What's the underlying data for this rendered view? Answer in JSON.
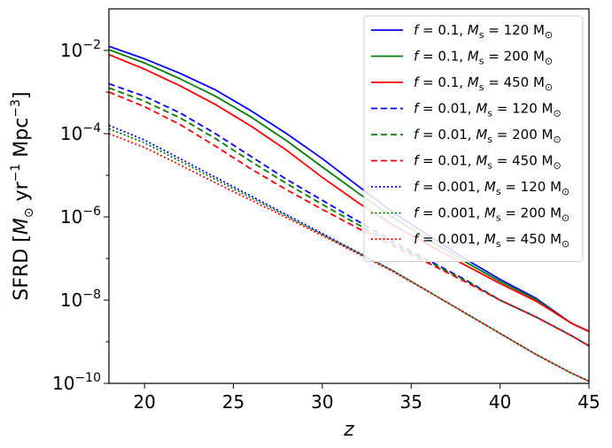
{
  "chart_data": {
    "type": "line",
    "title": "",
    "xlabel": "z",
    "ylabel": "SFRD [M☉ yr⁻¹ Mpc⁻³]",
    "ylabel_parts": {
      "prefix": "SFRD [",
      "msun": "M",
      "sun_sub": "⊙",
      "yr": " yr",
      "yr_exp": "−1",
      "mpc": " Mpc",
      "mpc_exp": "−3",
      "suffix": "]"
    },
    "xlim": [
      18,
      45
    ],
    "ylim_log10": [
      -10,
      -1
    ],
    "yscale": "log",
    "x_ticks": [
      {
        "value": 20,
        "label": "20"
      },
      {
        "value": 25,
        "label": "25"
      },
      {
        "value": 30,
        "label": "30"
      },
      {
        "value": 35,
        "label": "35"
      },
      {
        "value": 40,
        "label": "40"
      },
      {
        "value": 45,
        "label": "45"
      }
    ],
    "y_ticks": [
      {
        "exp": -10,
        "base": "10",
        "sup": "−10"
      },
      {
        "exp": -8,
        "base": "10",
        "sup": "−8"
      },
      {
        "exp": -6,
        "base": "10",
        "sup": "−6"
      },
      {
        "exp": -4,
        "base": "10",
        "sup": "−4"
      },
      {
        "exp": -2,
        "base": "10",
        "sup": "−2"
      }
    ],
    "legend_position": "top-right",
    "series": [
      {
        "name": "f = 0.1, Ms = 120 M⊙",
        "f": "0.1",
        "m": "120",
        "color": "#0000ff",
        "dash": "solid",
        "x": [
          18,
          20,
          22,
          24,
          26,
          28,
          30,
          32,
          34,
          36,
          38,
          40,
          42,
          43,
          44,
          45
        ],
        "log10_y": [
          -1.9,
          -2.2,
          -2.55,
          -2.95,
          -3.45,
          -4.0,
          -4.6,
          -5.25,
          -5.9,
          -6.45,
          -7.0,
          -7.5,
          -7.95,
          -8.25,
          -8.55,
          -8.75
        ]
      },
      {
        "name": "f = 0.1, Ms = 200 M⊙",
        "f": "0.1",
        "m": "200",
        "color": "#008000",
        "dash": "solid",
        "x": [
          18,
          20,
          22,
          24,
          26,
          28,
          30,
          32,
          34,
          36,
          38,
          40,
          42,
          43,
          44,
          45
        ],
        "log10_y": [
          -1.98,
          -2.3,
          -2.68,
          -3.1,
          -3.6,
          -4.17,
          -4.8,
          -5.42,
          -6.02,
          -6.55,
          -7.07,
          -7.55,
          -7.98,
          -8.27,
          -8.55,
          -8.75
        ]
      },
      {
        "name": "f = 0.1, Ms = 450 M⊙",
        "f": "0.1",
        "m": "450",
        "color": "#ff0000",
        "dash": "solid",
        "x": [
          18,
          20,
          22,
          24,
          26,
          28,
          30,
          32,
          34,
          36,
          38,
          40,
          42,
          43,
          44,
          45
        ],
        "log10_y": [
          -2.1,
          -2.45,
          -2.85,
          -3.3,
          -3.82,
          -4.4,
          -5.05,
          -5.65,
          -6.2,
          -6.67,
          -7.15,
          -7.6,
          -8.02,
          -8.28,
          -8.55,
          -8.75
        ]
      },
      {
        "name": "f = 0.01, Ms = 120 M⊙",
        "f": "0.01",
        "m": "120",
        "color": "#0000ff",
        "dash": "dashed",
        "x": [
          18,
          20,
          22,
          24,
          26,
          28,
          30,
          32,
          34,
          36,
          38,
          40,
          42,
          44,
          45
        ],
        "log10_y": [
          -2.8,
          -3.1,
          -3.5,
          -4.0,
          -4.55,
          -5.1,
          -5.6,
          -6.1,
          -6.6,
          -7.05,
          -7.5,
          -8.0,
          -8.4,
          -8.85,
          -9.1
        ]
      },
      {
        "name": "f = 0.01, Ms = 200 M⊙",
        "f": "0.01",
        "m": "200",
        "color": "#008000",
        "dash": "dashed",
        "x": [
          18,
          20,
          22,
          24,
          26,
          28,
          30,
          32,
          34,
          36,
          38,
          40,
          42,
          44,
          45
        ],
        "log10_y": [
          -2.9,
          -3.22,
          -3.62,
          -4.12,
          -4.67,
          -5.2,
          -5.7,
          -6.18,
          -6.65,
          -7.08,
          -7.52,
          -8.0,
          -8.4,
          -8.85,
          -9.1
        ]
      },
      {
        "name": "f = 0.01, Ms = 450 M⊙",
        "f": "0.01",
        "m": "450",
        "color": "#ff0000",
        "dash": "dashed",
        "x": [
          18,
          20,
          22,
          24,
          26,
          28,
          30,
          32,
          34,
          36,
          38,
          40,
          42,
          44,
          45
        ],
        "log10_y": [
          -3.0,
          -3.35,
          -3.78,
          -4.3,
          -4.85,
          -5.35,
          -5.82,
          -6.27,
          -6.7,
          -7.12,
          -7.55,
          -8.0,
          -8.4,
          -8.85,
          -9.1
        ]
      },
      {
        "name": "f = 0.001, Ms = 120 M⊙",
        "f": "0.001",
        "m": "120",
        "color": "#0000ff",
        "dash": "dotted",
        "x": [
          18,
          20,
          22,
          24,
          26,
          28,
          30,
          32,
          34,
          36,
          38,
          40,
          42,
          44,
          45
        ],
        "log10_y": [
          -3.8,
          -4.15,
          -4.6,
          -5.05,
          -5.5,
          -5.95,
          -6.4,
          -6.85,
          -7.3,
          -7.8,
          -8.3,
          -8.8,
          -9.3,
          -9.75,
          -9.95
        ]
      },
      {
        "name": "f = 0.001, Ms = 200 M⊙",
        "f": "0.001",
        "m": "200",
        "color": "#008000",
        "dash": "dotted",
        "x": [
          18,
          20,
          22,
          24,
          26,
          28,
          30,
          32,
          34,
          36,
          38,
          40,
          42,
          44,
          45
        ],
        "log10_y": [
          -3.88,
          -4.22,
          -4.66,
          -5.1,
          -5.54,
          -5.98,
          -6.42,
          -6.86,
          -7.3,
          -7.8,
          -8.3,
          -8.8,
          -9.3,
          -9.75,
          -9.95
        ]
      },
      {
        "name": "f = 0.001, Ms = 450 M⊙",
        "f": "0.001",
        "m": "450",
        "color": "#ff0000",
        "dash": "dotted",
        "x": [
          18,
          20,
          22,
          24,
          26,
          28,
          30,
          32,
          34,
          36,
          38,
          40,
          42,
          44,
          45
        ],
        "log10_y": [
          -4.0,
          -4.33,
          -4.75,
          -5.18,
          -5.6,
          -6.02,
          -6.45,
          -6.88,
          -7.32,
          -7.8,
          -8.3,
          -8.8,
          -9.3,
          -9.75,
          -9.95
        ]
      }
    ]
  }
}
